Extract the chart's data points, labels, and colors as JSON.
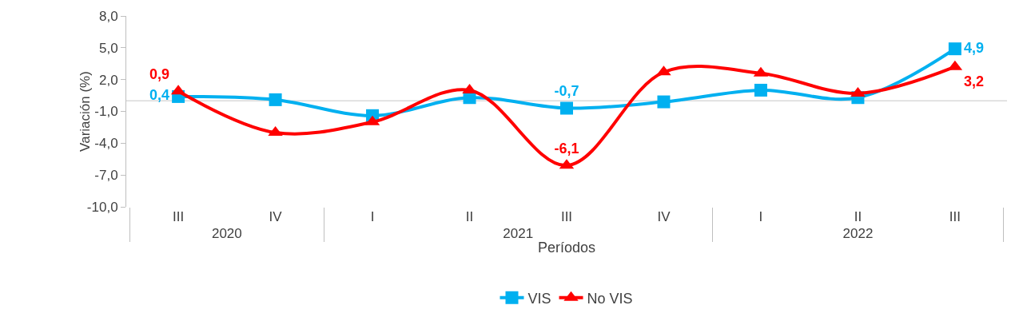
{
  "chart_data": {
    "type": "line",
    "ylabel": "Variación (%)",
    "xlabel": "Períodos",
    "categories": [
      "III",
      "IV",
      "I",
      "II",
      "III",
      "IV",
      "I",
      "II",
      "III"
    ],
    "annotations": [
      "2020",
      "2021",
      "2022"
    ],
    "series": [
      {
        "name": "VIS",
        "color": "#00b0f0",
        "marker": "square",
        "values": [
          0.4,
          0.1,
          -1.4,
          0.3,
          -0.7,
          -0.1,
          1.0,
          0.3,
          4.9
        ],
        "value_labels": [
          "0,4",
          null,
          null,
          null,
          "-0,7",
          null,
          null,
          null,
          "4,9"
        ]
      },
      {
        "name": "No VIS",
        "color": "#ff0000",
        "marker": "triangle",
        "values": [
          0.9,
          -3.0,
          -2.0,
          1.0,
          -6.1,
          2.7,
          2.6,
          0.7,
          3.2
        ],
        "value_labels": [
          "0,9",
          null,
          null,
          null,
          "-6,1",
          null,
          null,
          null,
          "3,2"
        ]
      }
    ],
    "ylim": [
      -10,
      8
    ],
    "yticks": [
      {
        "value": 8,
        "label": "8,0"
      },
      {
        "value": 5,
        "label": "5,0"
      },
      {
        "value": 2,
        "label": "2,0"
      },
      {
        "value": -1,
        "label": "-1,0"
      },
      {
        "value": -4,
        "label": "-4,0"
      },
      {
        "value": -7,
        "label": "-7,0"
      },
      {
        "value": -10,
        "label": "-10,0"
      }
    ],
    "ref_lines": [
      {
        "axis": "y",
        "value": 0,
        "color": "#d9d9d9"
      }
    ],
    "grid": false,
    "legend": "bottom",
    "line_style": "solid"
  }
}
